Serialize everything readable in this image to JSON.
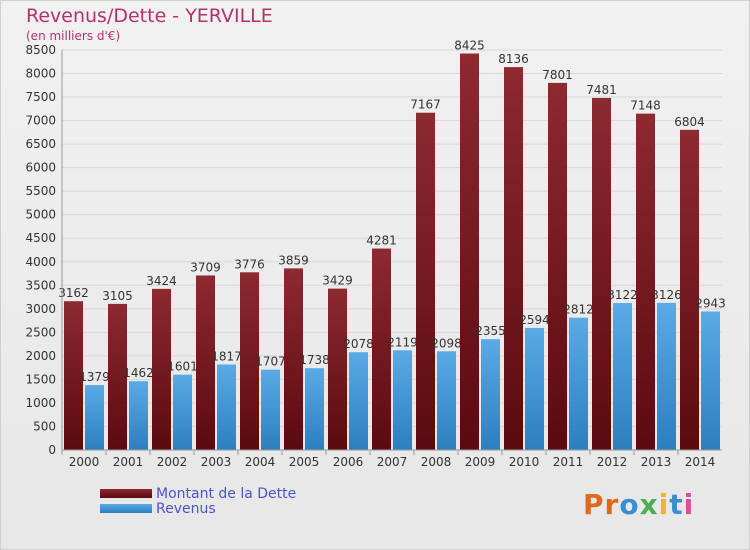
{
  "header": {
    "title": "Revenus/Dette - YERVILLE",
    "subtitle": "(en milliers d'€)"
  },
  "logo": {
    "letters": [
      "P",
      "r",
      "o",
      "x",
      "i",
      "t",
      "i"
    ],
    "colors": [
      "#e06a1b",
      "#e06a1b",
      "#3a8fd0",
      "#4caf50",
      "#e8b923",
      "#3a8fd0",
      "#d94f9a"
    ]
  },
  "colors": {
    "dette": "#7a1c22",
    "revenus": "#3f93d4",
    "axis_text": "#333333",
    "grid": "#d8d8d8"
  },
  "chart_data": {
    "type": "bar",
    "title": "Revenus/Dette - YERVILLE",
    "subtitle": "(en milliers d'€)",
    "categories": [
      "2000",
      "2001",
      "2002",
      "2003",
      "2004",
      "2005",
      "2006",
      "2007",
      "2008",
      "2009",
      "2010",
      "2011",
      "2012",
      "2013",
      "2014"
    ],
    "series": [
      {
        "name": "Montant de la Dette",
        "values": [
          3162,
          3105,
          3424,
          3709,
          3776,
          3859,
          3429,
          4281,
          7167,
          8425,
          8136,
          7801,
          7481,
          7148,
          6804
        ]
      },
      {
        "name": "Revenus",
        "values": [
          1379,
          1462,
          1601,
          1817,
          1707,
          1738,
          2078,
          2119,
          2098,
          2355,
          2594,
          2812,
          3122,
          3126,
          2943
        ]
      }
    ],
    "ylim": [
      0,
      8500
    ],
    "yticks": [
      0,
      500,
      1000,
      1500,
      2000,
      2500,
      3000,
      3500,
      4000,
      4500,
      5000,
      5500,
      6000,
      6500,
      7000,
      7500,
      8000,
      8500
    ],
    "grid": true,
    "legend": "bottom-left"
  }
}
